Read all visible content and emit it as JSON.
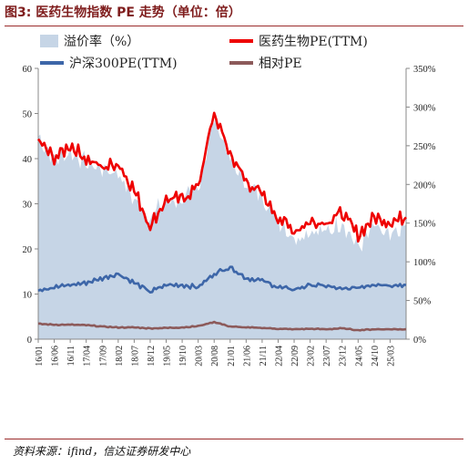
{
  "header": {
    "title": "图3: 医药生物指数 PE 走势（单位：倍）"
  },
  "footer": {
    "source": "资料来源：ifind，信达证券研发中心"
  },
  "chart_data": {
    "type": "line",
    "title": "图3: 医药生物指数 PE 走势（单位：倍）",
    "y_left": {
      "min": 0,
      "max": 60,
      "ticks": [
        0,
        10,
        20,
        30,
        40,
        50,
        60
      ]
    },
    "y_right": {
      "min": 0,
      "max": 350,
      "ticks": [
        "0%",
        "50%",
        "100%",
        "150%",
        "200%",
        "250%",
        "300%",
        "350%"
      ]
    },
    "x_tick_labels": [
      "16/01",
      "16/06",
      "16/11",
      "17/04",
      "17/09",
      "18/02",
      "18/07",
      "18/12",
      "19/05",
      "19/10",
      "20/03",
      "20/08",
      "21/01",
      "21/06",
      "21/11",
      "22/04",
      "22/09",
      "23/02",
      "23/07",
      "23/12",
      "24/05",
      "24/10",
      "25/03"
    ],
    "legend_position": "top",
    "series": [
      {
        "name": "溢价率（%）",
        "type": "area",
        "axis": "right",
        "color": "#c6d5e6",
        "x": [
          "16/01",
          "16/06",
          "16/11",
          "17/04",
          "17/09",
          "18/02",
          "18/07",
          "18/12",
          "19/05",
          "19/10",
          "20/03",
          "20/08",
          "21/01",
          "21/06",
          "21/11",
          "22/04",
          "22/09",
          "23/02",
          "23/07",
          "23/12",
          "24/05",
          "24/10",
          "25/03",
          "25/06"
        ],
        "values": [
          262,
          232,
          242,
          228,
          220,
          215,
          180,
          158,
          180,
          178,
          195,
          288,
          232,
          200,
          185,
          155,
          130,
          140,
          138,
          152,
          118,
          145,
          130,
          148
        ]
      },
      {
        "name": "医药生物PE(TTM)",
        "type": "line",
        "axis": "left",
        "color": "#ee0000",
        "x": [
          "16/01",
          "16/06",
          "16/11",
          "17/04",
          "17/09",
          "18/02",
          "18/07",
          "18/12",
          "19/05",
          "19/10",
          "20/03",
          "20/08",
          "21/01",
          "21/06",
          "21/11",
          "22/04",
          "22/09",
          "23/02",
          "23/07",
          "23/12",
          "24/05",
          "24/10",
          "25/03",
          "25/06"
        ],
        "values": [
          44,
          40,
          43,
          40,
          38,
          39,
          33,
          25,
          31,
          31,
          34,
          50,
          41,
          35,
          32,
          27,
          24,
          26,
          26,
          28,
          23,
          27,
          26,
          27
        ]
      },
      {
        "name": "沪深300PE(TTM)",
        "type": "line",
        "axis": "left",
        "color": "#3d66a8",
        "x": [
          "16/01",
          "16/06",
          "16/11",
          "17/04",
          "17/09",
          "18/02",
          "18/07",
          "18/12",
          "19/05",
          "19/10",
          "20/03",
          "20/08",
          "21/01",
          "21/06",
          "21/11",
          "22/04",
          "22/09",
          "23/02",
          "23/07",
          "23/12",
          "24/05",
          "24/10",
          "25/03",
          "25/06"
        ],
        "values": [
          11,
          11.5,
          12,
          12.5,
          13.5,
          14.5,
          12.5,
          10.5,
          12,
          12,
          11.5,
          14.5,
          16,
          13.5,
          13,
          11.5,
          11,
          12,
          11.8,
          11,
          11.5,
          12.2,
          12,
          12
        ]
      },
      {
        "name": "相对PE",
        "type": "line",
        "axis": "left",
        "color": "#8c5a5a",
        "x": [
          "16/01",
          "16/06",
          "16/11",
          "17/04",
          "17/09",
          "18/02",
          "18/07",
          "18/12",
          "19/05",
          "19/10",
          "20/03",
          "20/08",
          "21/01",
          "21/06",
          "21/11",
          "22/04",
          "22/09",
          "23/02",
          "23/07",
          "23/12",
          "24/05",
          "24/10",
          "25/03",
          "25/06"
        ],
        "values": [
          3.4,
          3.2,
          3.2,
          3.1,
          2.8,
          2.6,
          2.6,
          2.4,
          2.5,
          2.6,
          2.9,
          3.8,
          2.8,
          2.6,
          2.5,
          2.3,
          2.2,
          2.3,
          2.2,
          2.4,
          2.0,
          2.2,
          2.2,
          2.2
        ]
      }
    ]
  }
}
